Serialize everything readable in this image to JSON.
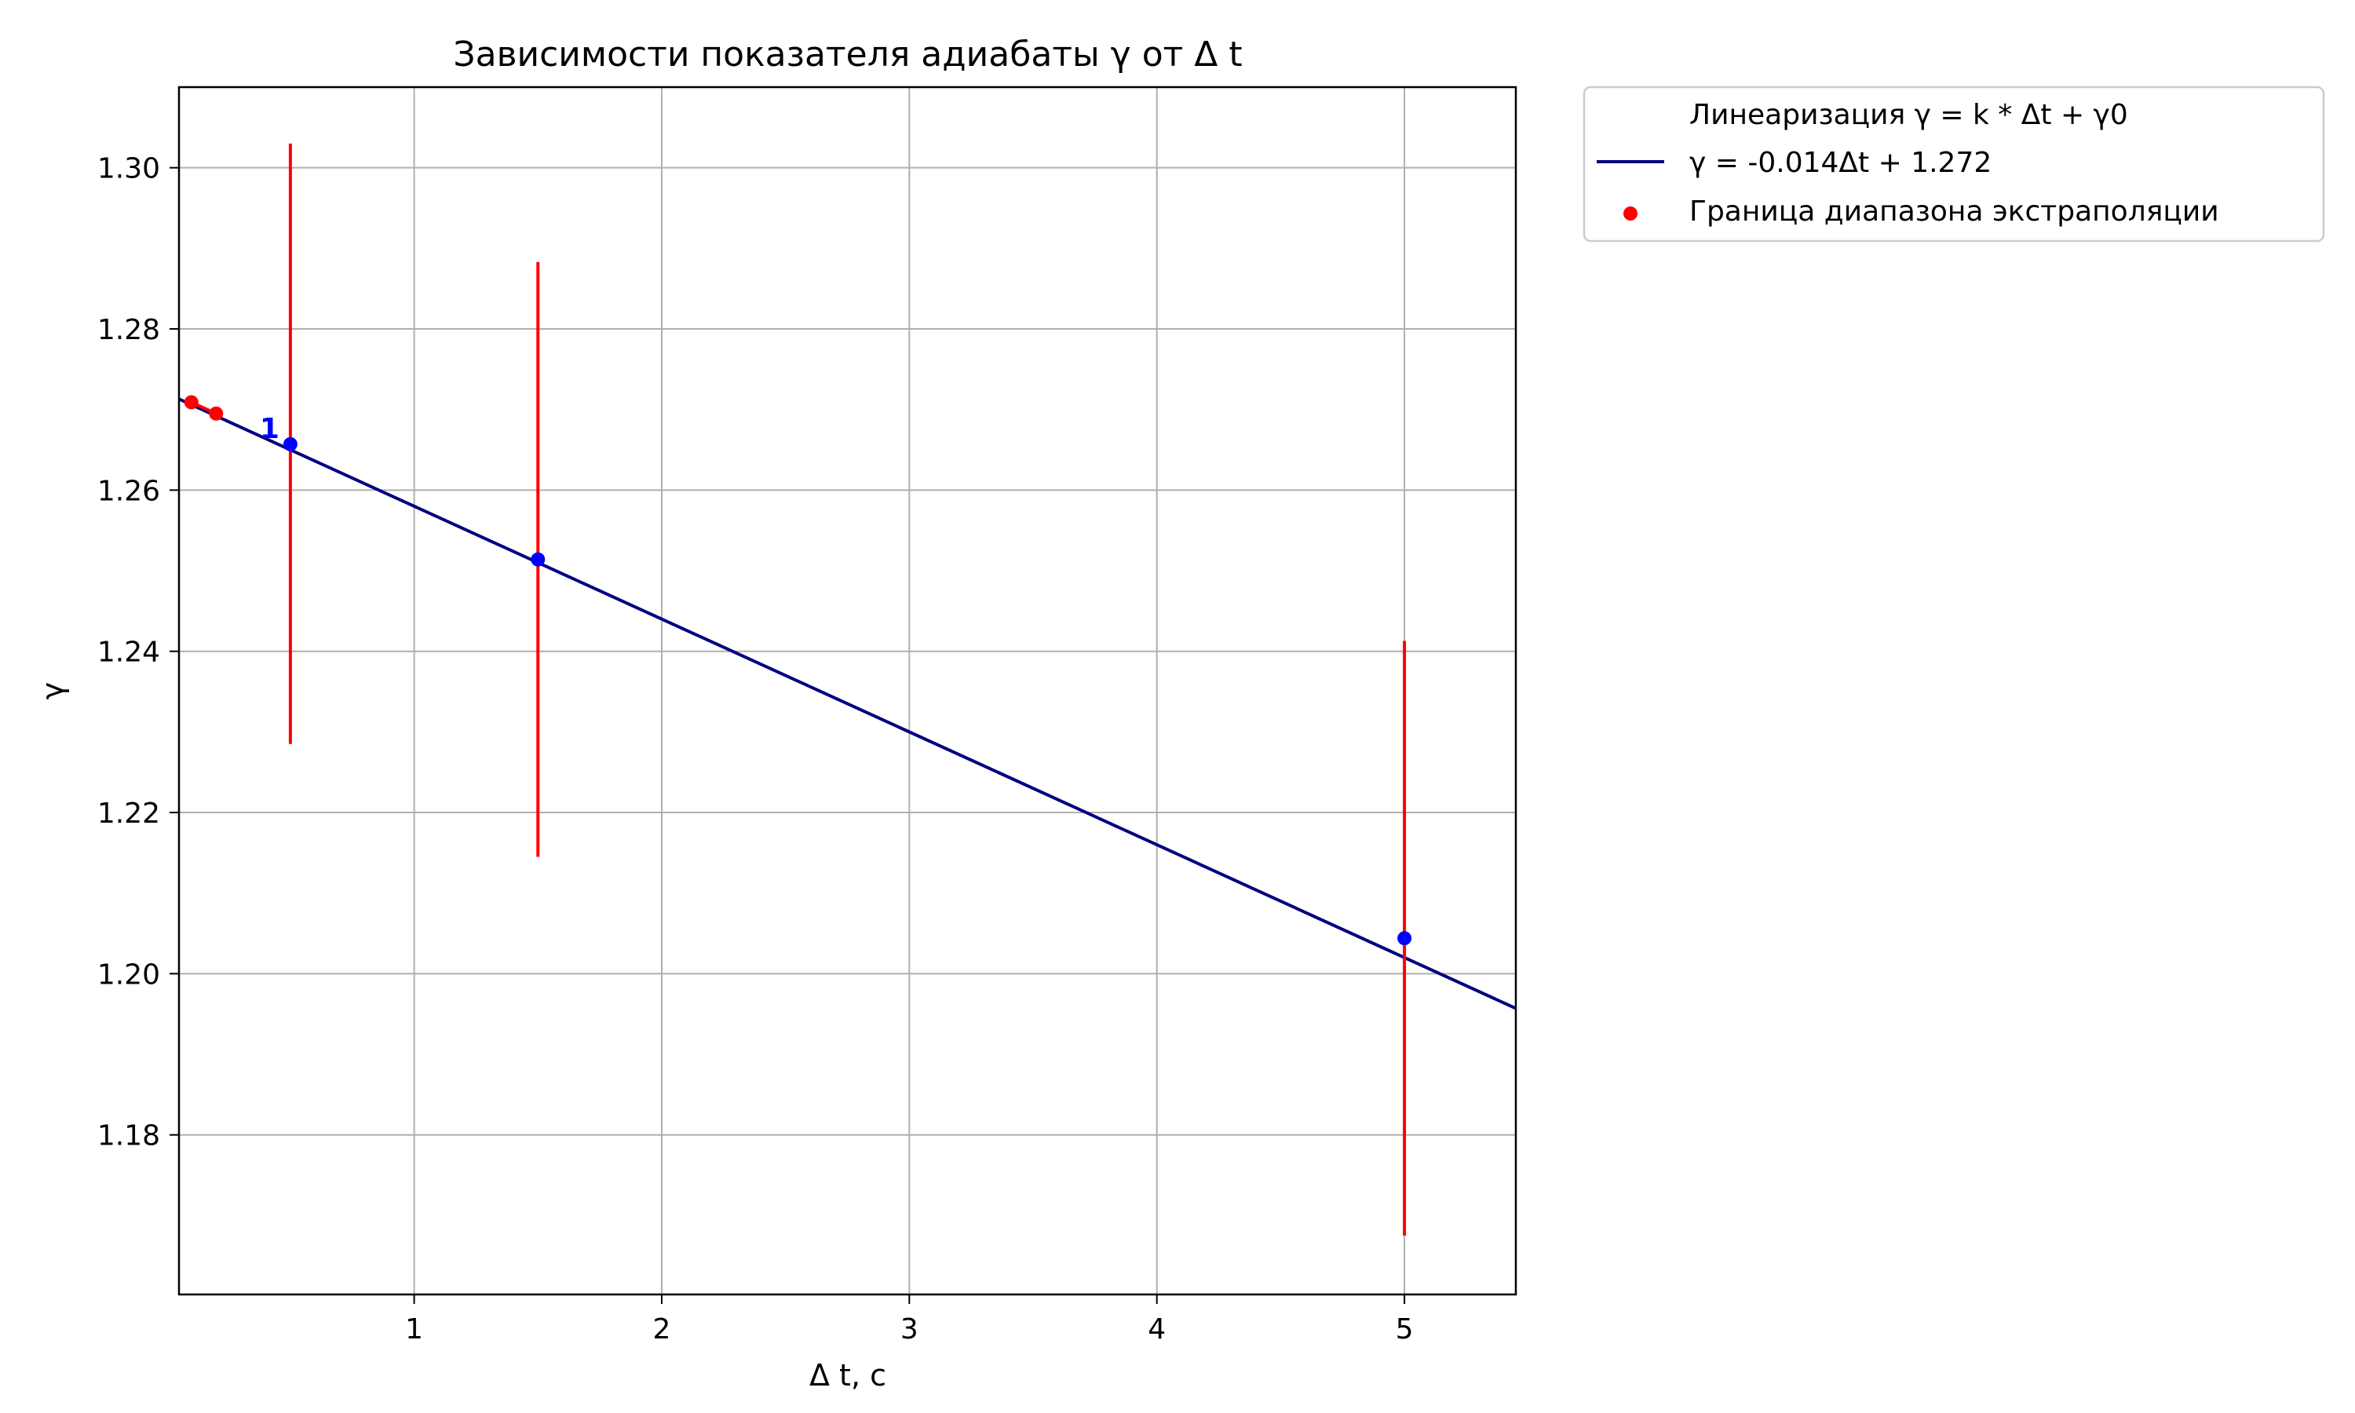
{
  "chart_data": {
    "type": "scatter",
    "title": "Зависимости показателя адиабаты γ от Δ t",
    "xlabel": "Δ t, c",
    "ylabel": "γ",
    "xlim": [
      0.05,
      5.45
    ],
    "ylim": [
      1.1602,
      1.31
    ],
    "x_ticks": [
      1,
      2,
      3,
      4,
      5
    ],
    "x_tick_labels": [
      "1",
      "2",
      "3",
      "4",
      "5"
    ],
    "y_ticks": [
      1.18,
      1.2,
      1.22,
      1.24,
      1.26,
      1.28,
      1.3
    ],
    "y_tick_labels": [
      "1.18",
      "1.20",
      "1.22",
      "1.24",
      "1.26",
      "1.28",
      "1.30"
    ],
    "grid": true,
    "legend_placement": "outside top-right",
    "colors": {
      "fit_line": "#000080",
      "measured_points": "#0000ff",
      "error_bars": "#ff0000",
      "extrapolation_points": "#ff0000",
      "grid": "#b0b0b0"
    },
    "legend": {
      "header": "Линеаризация γ = k * Δt + γ0",
      "fit_label": "γ = -0.014Δt + 1.272",
      "extrapolation_label": "Граница диапазона экстраполяции"
    },
    "fit": {
      "slope": -0.014,
      "intercept": 1.272,
      "x_range": [
        0.05,
        5.45
      ]
    },
    "measured_points": {
      "x": [
        0.5,
        1.5,
        5.0
      ],
      "y": [
        1.2657,
        1.2514,
        1.2044
      ],
      "err_low": [
        1.2285,
        1.2145,
        1.1675
      ],
      "err_high": [
        1.303,
        1.2883,
        1.2413
      ]
    },
    "point_annotation": {
      "text": "1",
      "x": 0.5,
      "y": 1.2657
    },
    "extrapolation_points": {
      "x": [
        0.1,
        0.2
      ],
      "y": [
        1.2709,
        1.2695
      ]
    }
  }
}
